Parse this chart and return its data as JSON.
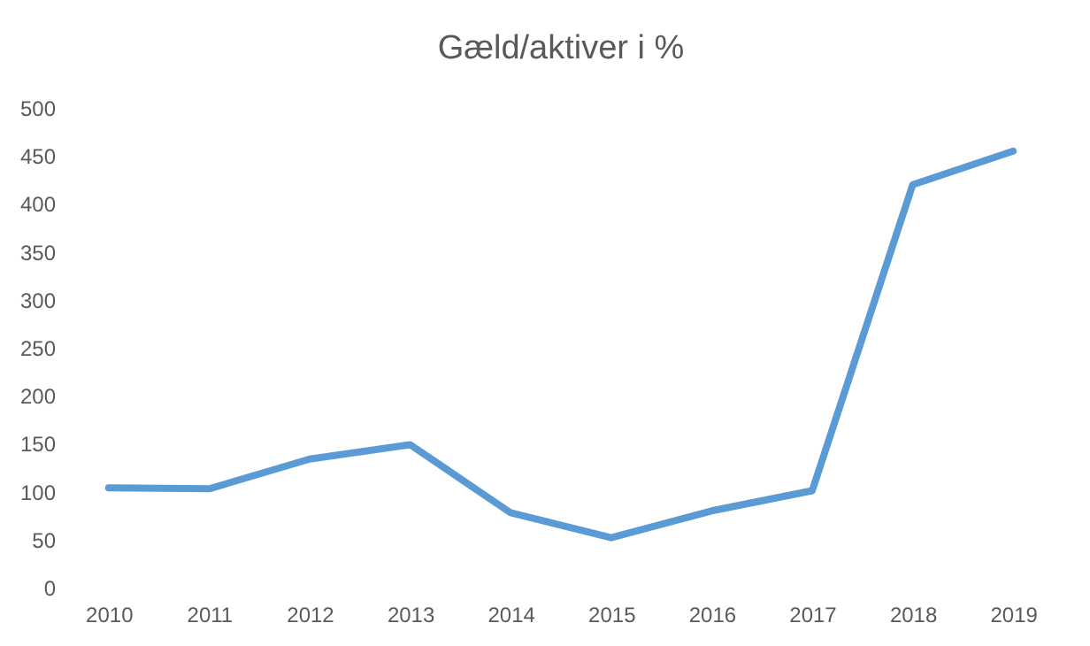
{
  "chart_data": {
    "type": "line",
    "title": "Gæld/aktiver i %",
    "categories": [
      "2010",
      "2011",
      "2012",
      "2013",
      "2014",
      "2015",
      "2016",
      "2017",
      "2018",
      "2019"
    ],
    "series": [
      {
        "color": "#5b9bd5",
        "values": [
          104,
          103,
          134,
          149,
          78,
          52,
          80,
          101,
          420,
          455
        ]
      }
    ],
    "ylim": [
      0,
      500
    ],
    "yticks": [
      0,
      50,
      100,
      150,
      200,
      250,
      300,
      350,
      400,
      450,
      500
    ],
    "grid": false,
    "marker": "none",
    "line_style": "solid"
  }
}
